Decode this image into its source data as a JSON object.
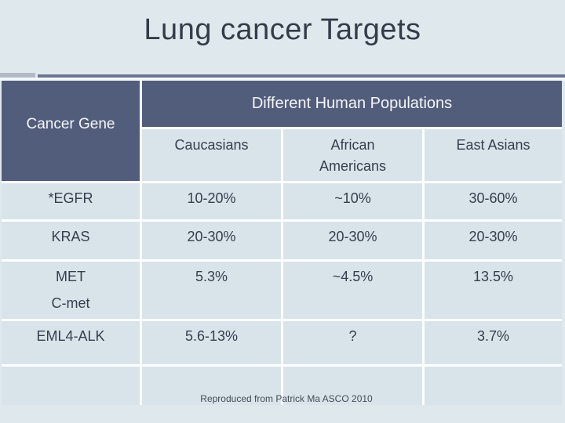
{
  "title": "Lung cancer Targets",
  "table": {
    "corner_header": "Cancer Gene",
    "group_header": "Different Human Populations",
    "column_headers": [
      "Caucasians",
      "African Americans",
      "East Asians"
    ],
    "rows": [
      {
        "gene_lines": [
          "*EGFR"
        ],
        "values": [
          "10-20%",
          "~10%",
          "30-60%"
        ]
      },
      {
        "gene_lines": [
          "KRAS"
        ],
        "values": [
          "20-30%",
          "20-30%",
          "20-30%"
        ]
      },
      {
        "gene_lines": [
          "MET",
          "C-met"
        ],
        "values": [
          "5.3%",
          "~4.5%",
          "13.5%"
        ]
      },
      {
        "gene_lines": [
          "EML4-ALK"
        ],
        "values": [
          "5.6-13%",
          "?",
          "3.7%"
        ]
      }
    ]
  },
  "footer": "Reproduced from Patrick Ma ASCO 2010",
  "colors": {
    "slide_background": "#dfe9ed",
    "header_fill": "#525d7c",
    "header_text": "#f5f6f8",
    "cell_fill": "#d9e4ea",
    "cell_text": "#363e4d",
    "title_text": "#343c4a",
    "rule_dark": "#6b7690",
    "rule_light": "#b3bac6"
  },
  "chart_data": {
    "type": "table",
    "title": "Lung cancer Targets",
    "group_header": "Different Human Populations",
    "columns": [
      "Cancer Gene",
      "Caucasians",
      "African Americans",
      "East Asians"
    ],
    "rows": [
      [
        "*EGFR",
        "10-20%",
        "~10%",
        "30-60%"
      ],
      [
        "KRAS",
        "20-30%",
        "20-30%",
        "20-30%"
      ],
      [
        "MET C-met",
        "5.3%",
        "~4.5%",
        "13.5%"
      ],
      [
        "EML4-ALK",
        "5.6-13%",
        "?",
        "3.7%"
      ]
    ],
    "source_note": "Reproduced from Patrick Ma ASCO 2010"
  }
}
